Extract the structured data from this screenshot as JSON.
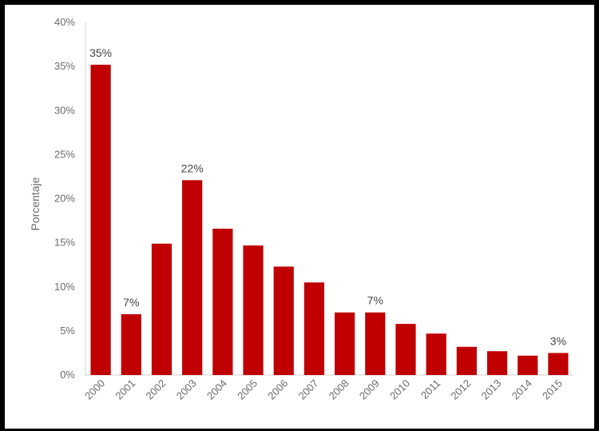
{
  "chart_data": {
    "type": "bar",
    "ylabel": "Porcentaje",
    "ylim": [
      0,
      40
    ],
    "ytick_labels": [
      "0%",
      "5%",
      "10%",
      "15%",
      "20%",
      "25%",
      "30%",
      "35%",
      "40%"
    ],
    "categories": [
      "2000",
      "2001",
      "2002",
      "2003",
      "2004",
      "2005",
      "2006",
      "2007",
      "2008",
      "2009",
      "2010",
      "2011",
      "2012",
      "2013",
      "2014",
      "2015"
    ],
    "values": [
      35.2,
      6.9,
      14.9,
      22.1,
      16.6,
      14.7,
      12.3,
      10.5,
      7.1,
      7.1,
      5.8,
      4.7,
      3.2,
      2.7,
      2.2,
      2.5
    ],
    "data_labels": [
      {
        "category": "2000",
        "text": "35%"
      },
      {
        "category": "2001",
        "text": "7%"
      },
      {
        "category": "2003",
        "text": "22%"
      },
      {
        "category": "2009",
        "text": "7%"
      },
      {
        "category": "2015",
        "text": "3%"
      }
    ],
    "bar_color": "#c00000",
    "grid": false,
    "legend": "none"
  }
}
